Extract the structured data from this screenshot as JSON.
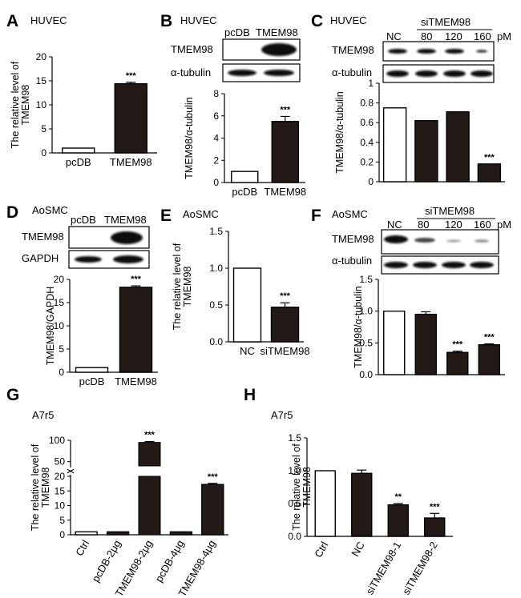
{
  "chart_data": [
    {
      "panel": "A",
      "type": "bar",
      "cell_line": "HUVEC",
      "categories": [
        "pcDB",
        "TMEM98"
      ],
      "values": [
        1.0,
        14.4
      ],
      "errors": [
        0,
        0.3
      ],
      "fills": [
        "white",
        "dark"
      ],
      "significance": [
        "",
        "***"
      ],
      "ylabel": "The relative level of TMEM98",
      "ylim": [
        0,
        20
      ],
      "yticks": [
        0,
        5,
        10,
        15,
        20
      ]
    },
    {
      "panel": "B",
      "type": "bar",
      "cell_line": "HUVEC",
      "categories": [
        "pcDB",
        "TMEM98"
      ],
      "values": [
        1.0,
        5.5
      ],
      "errors": [
        0,
        0.45
      ],
      "fills": [
        "white",
        "dark"
      ],
      "significance": [
        "",
        "***"
      ],
      "ylabel": "TMEM98/α-tubulin",
      "ylim": [
        0,
        8
      ],
      "yticks": [
        0,
        2,
        4,
        6,
        8
      ],
      "blot": {
        "lanes": [
          "pcDB",
          "TMEM98"
        ],
        "rows": [
          "TMEM98",
          "α-tubulin"
        ]
      }
    },
    {
      "panel": "C",
      "type": "bar",
      "cell_line": "HUVEC",
      "categories": [
        "NC",
        "80",
        "120",
        "160"
      ],
      "values": [
        0.75,
        0.62,
        0.71,
        0.18
      ],
      "errors": [
        0,
        0,
        0,
        0
      ],
      "fills": [
        "white",
        "dark",
        "dark",
        "dark"
      ],
      "significance": [
        "",
        "",
        "",
        "***"
      ],
      "ylabel": "TMEM98/α-tubulin",
      "ylim": [
        0,
        1.0
      ],
      "yticks": [
        0,
        0.2,
        0.4,
        0.6,
        0.8,
        1.0
      ],
      "blot": {
        "header_group": "siTMEM98",
        "lanes": [
          "NC",
          "80",
          "120",
          "160"
        ],
        "unit": "pM",
        "rows": [
          "TMEM98",
          "α-tubulin"
        ]
      }
    },
    {
      "panel": "D",
      "type": "bar",
      "cell_line": "AoSMC",
      "categories": [
        "pcDB",
        "TMEM98"
      ],
      "values": [
        1.0,
        18.3
      ],
      "errors": [
        0,
        0.3
      ],
      "fills": [
        "white",
        "dark"
      ],
      "significance": [
        "",
        "***"
      ],
      "ylabel": "TMEM98/GAPDH",
      "ylim": [
        0,
        20
      ],
      "yticks": [
        0,
        5,
        10,
        15,
        20
      ],
      "blot": {
        "lanes": [
          "pcDB",
          "TMEM98"
        ],
        "rows": [
          "TMEM98",
          "GAPDH"
        ]
      }
    },
    {
      "panel": "E",
      "type": "bar",
      "cell_line": "AoSMC",
      "categories": [
        "NC",
        "siTMEM98"
      ],
      "values": [
        1.0,
        0.47
      ],
      "errors": [
        0,
        0.06
      ],
      "fills": [
        "white",
        "dark"
      ],
      "significance": [
        "",
        "***"
      ],
      "ylabel": "The relative level of TMEM98",
      "ylim": [
        0,
        1.5
      ],
      "yticks": [
        "0.0",
        "0.5",
        "1.0",
        "1.5"
      ]
    },
    {
      "panel": "F",
      "type": "bar",
      "cell_line": "AoSMC",
      "categories": [
        "NC",
        "80",
        "120",
        "160"
      ],
      "values": [
        1.0,
        0.95,
        0.35,
        0.47
      ],
      "errors": [
        0,
        0.04,
        0.02,
        0.015
      ],
      "fills": [
        "white",
        "dark",
        "dark",
        "dark"
      ],
      "significance": [
        "",
        "",
        "***",
        "***"
      ],
      "ylabel": "TMEM98/α-tubulin",
      "ylim": [
        0,
        1.5
      ],
      "yticks": [
        "0.0",
        "0.5",
        "1.0",
        "1.5"
      ],
      "blot": {
        "header_group": "siTMEM98",
        "lanes": [
          "NC",
          "80",
          "120",
          "160"
        ],
        "unit": "pM",
        "rows": [
          "TMEM98",
          "α-tubulin"
        ]
      }
    },
    {
      "panel": "G",
      "type": "bar",
      "cell_line": "A7r5",
      "categories": [
        "Ctrl",
        "pcDB-2μg",
        "TMEM98-2μg",
        "pcDB-4μg",
        "TMEM98-4μg"
      ],
      "values": [
        1.0,
        1.0,
        95,
        1.0,
        17.2
      ],
      "errors": [
        0,
        0,
        2,
        0,
        0.4
      ],
      "fills": [
        "white",
        "dark",
        "dark",
        "dark",
        "dark"
      ],
      "significance": [
        "",
        "",
        "***",
        "",
        "***"
      ],
      "ylabel": "The relative level of TMEM98",
      "broken_axis": {
        "lower": [
          0,
          20
        ],
        "upper": [
          40,
          100
        ]
      },
      "yticks_lower": [
        0,
        5,
        10,
        15,
        20
      ],
      "yticks_upper": [
        50,
        100
      ]
    },
    {
      "panel": "H",
      "type": "bar",
      "cell_line": "A7r5",
      "categories": [
        "Ctrl",
        "NC",
        "siTMEM98-1",
        "siTMEM98-2"
      ],
      "values": [
        1.0,
        0.96,
        0.48,
        0.28
      ],
      "errors": [
        0,
        0.05,
        0.02,
        0.07
      ],
      "fills": [
        "white",
        "dark",
        "dark",
        "dark"
      ],
      "significance": [
        "",
        "",
        "**",
        "***"
      ],
      "ylabel": "The relative level of TMEM98",
      "ylim": [
        0,
        1.5
      ],
      "yticks": [
        "0.0",
        "0.5",
        "1.0",
        "1.5"
      ]
    }
  ],
  "colors": {
    "bar_dark": "#231916",
    "bar_white": "#ffffff",
    "ink": "#000000"
  }
}
